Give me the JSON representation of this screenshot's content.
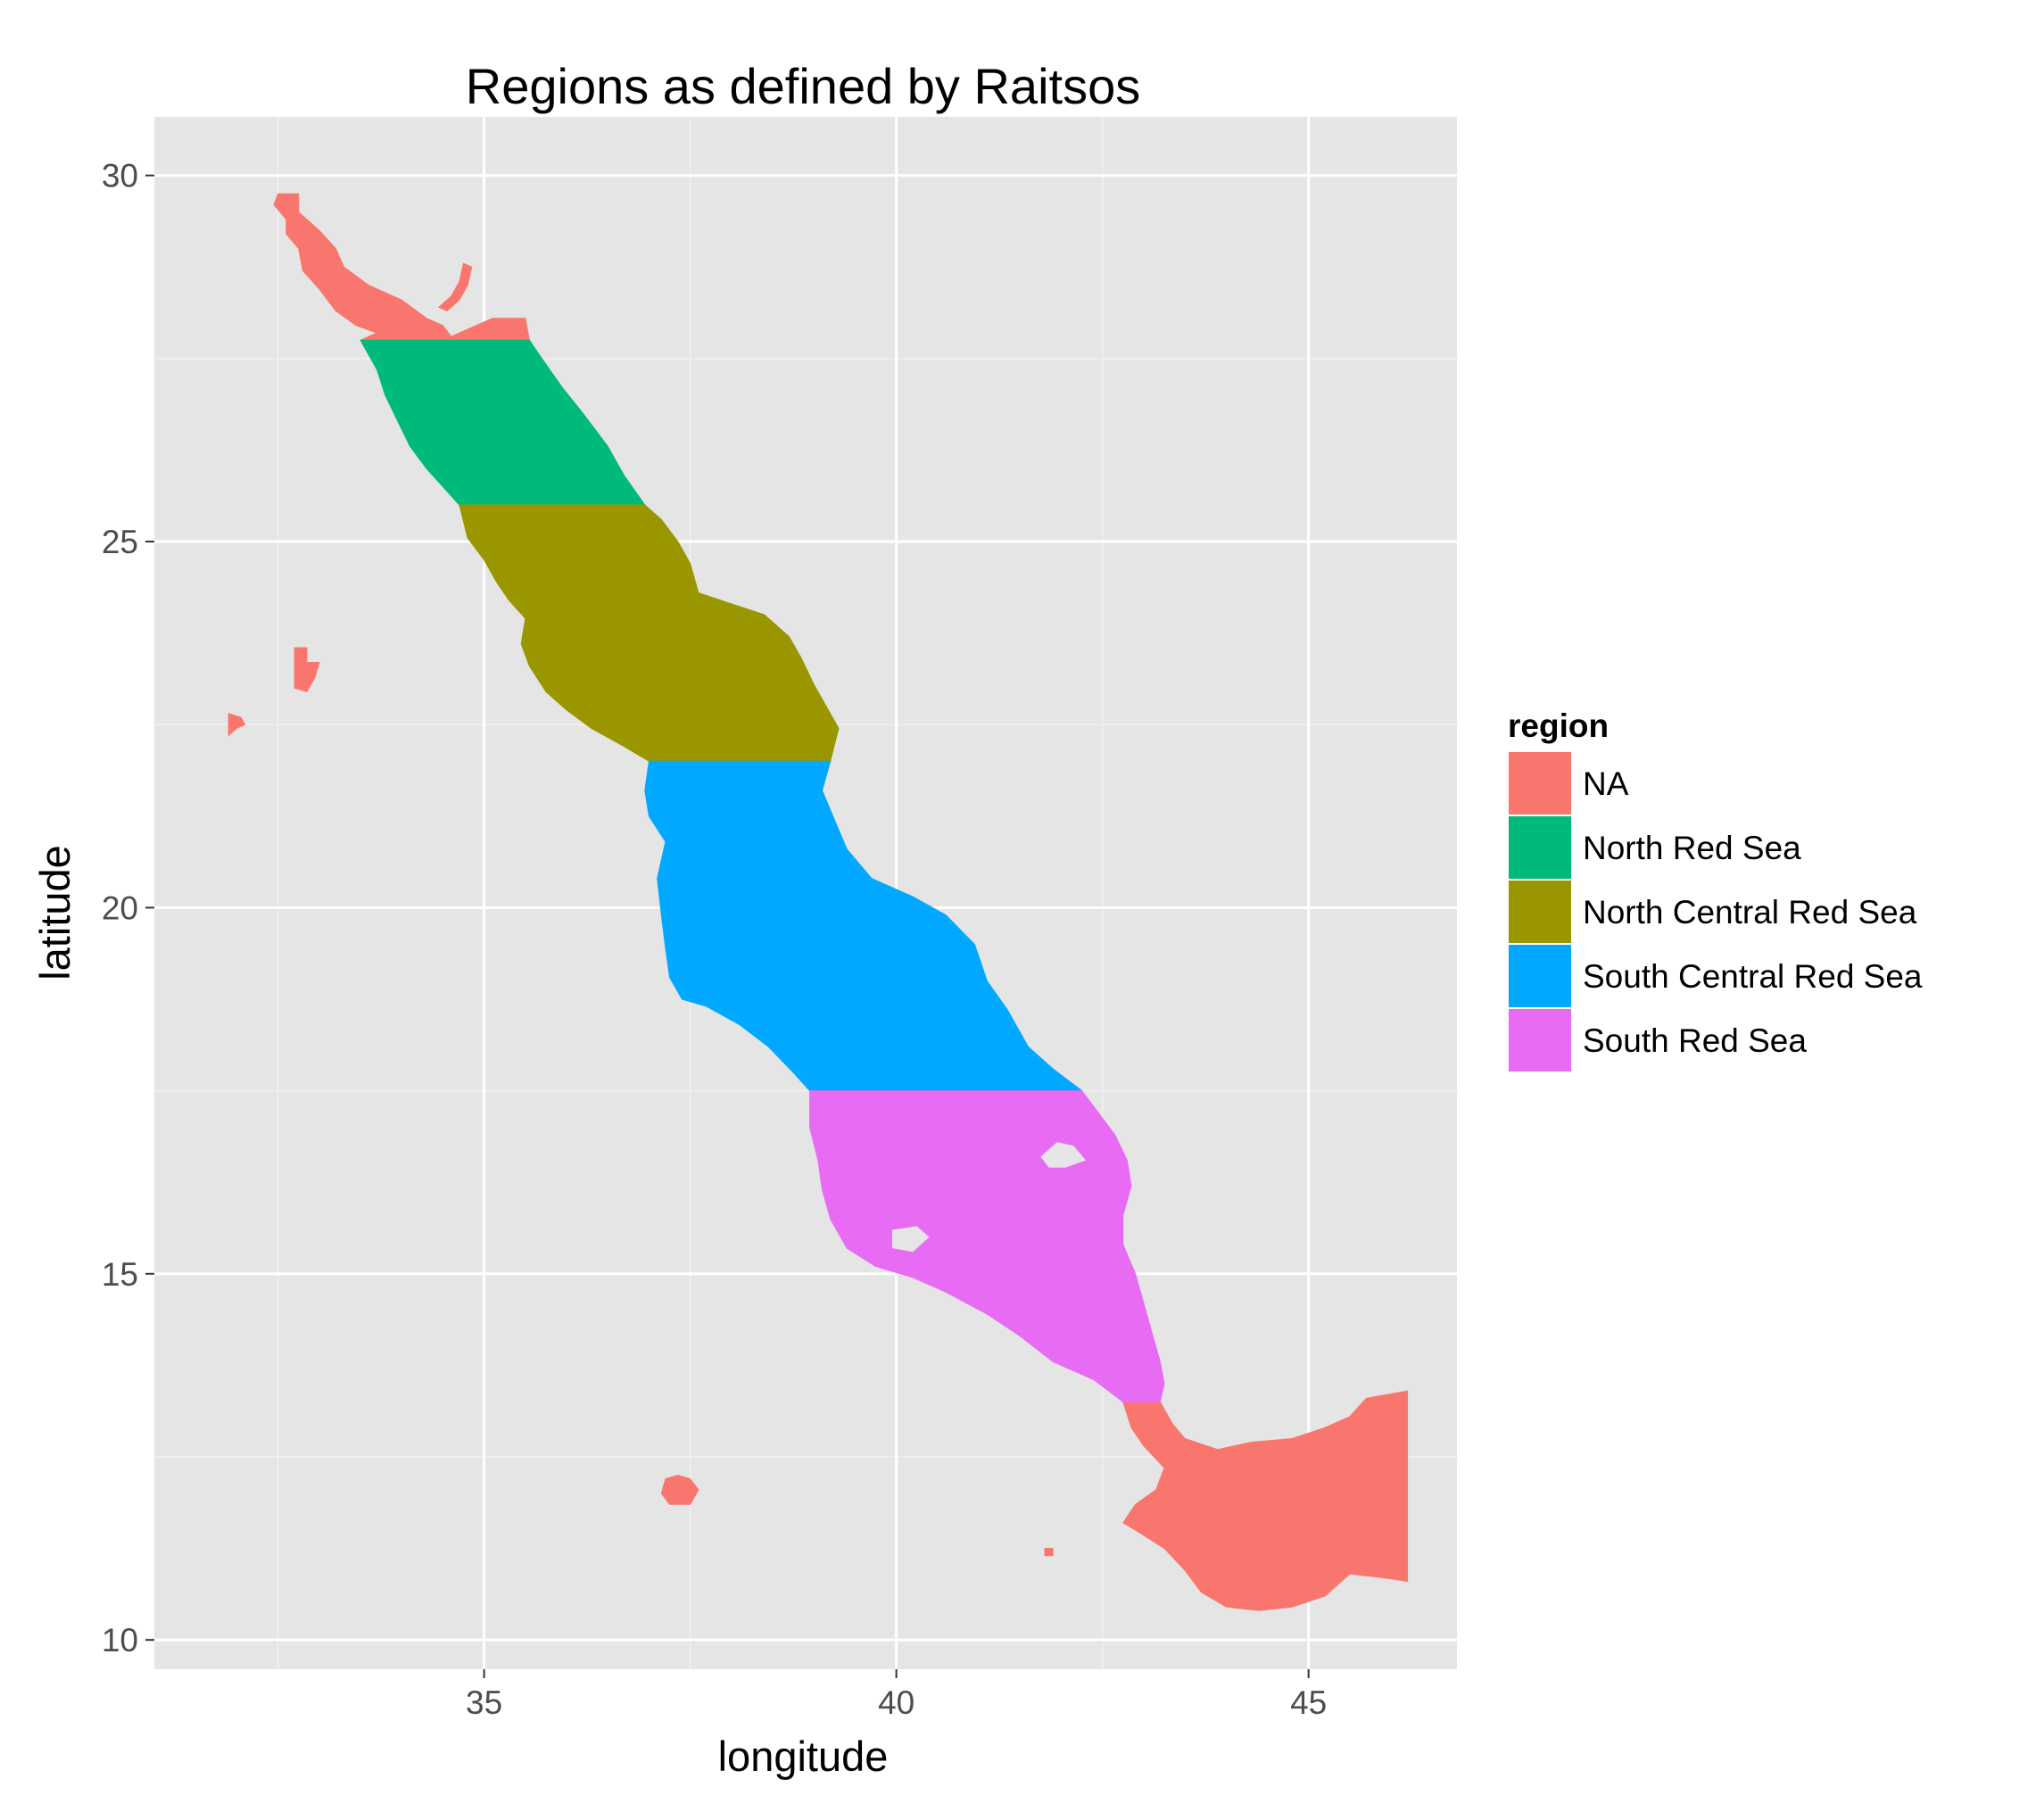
{
  "chart_data": {
    "type": "map",
    "title": "Regions as defined by Raitsos",
    "xlabel": "longitude",
    "ylabel": "latitude",
    "xlim": [
      31.0,
      46.8
    ],
    "ylim": [
      9.6,
      30.8
    ],
    "x_ticks": [
      35,
      40,
      45
    ],
    "y_ticks": [
      10,
      15,
      20,
      25,
      30
    ],
    "grid": true,
    "legend_position": "right",
    "legend_title": "region",
    "legend": [
      {
        "name": "NA",
        "color": "#F8766D"
      },
      {
        "name": "North Red Sea",
        "color": "#00BA7C"
      },
      {
        "name": "North Central Red Sea",
        "color": "#9A9600"
      },
      {
        "name": "South Central Red Sea",
        "color": "#00A9FF"
      },
      {
        "name": "South Red Sea",
        "color": "#E76BF3"
      }
    ],
    "region_bands": [
      {
        "name": "North Red Sea",
        "lat_from": 25.5,
        "lat_to": 27.75
      },
      {
        "name": "North Central Red Sea",
        "lat_from": 22.0,
        "lat_to": 25.5
      },
      {
        "name": "South Central Red Sea",
        "lat_from": 17.5,
        "lat_to": 22.0
      },
      {
        "name": "South Red Sea",
        "lat_from": 13.25,
        "lat_to": 17.5
      }
    ],
    "shapes": [
      {
        "region": "NA",
        "points": [
          [
            32.5,
            29.75
          ],
          [
            32.75,
            29.75
          ],
          [
            32.75,
            29.5
          ],
          [
            33.0,
            29.25
          ],
          [
            33.2,
            29.0
          ],
          [
            33.3,
            28.75
          ],
          [
            33.6,
            28.5
          ],
          [
            34.0,
            28.3
          ],
          [
            34.3,
            28.05
          ],
          [
            34.5,
            27.95
          ],
          [
            34.6,
            27.8
          ],
          [
            34.9,
            27.95
          ],
          [
            35.1,
            28.05
          ],
          [
            35.5,
            28.05
          ],
          [
            35.55,
            27.75
          ],
          [
            33.5,
            27.75
          ],
          [
            33.7,
            27.85
          ],
          [
            33.45,
            27.95
          ],
          [
            33.2,
            28.15
          ],
          [
            33.0,
            28.45
          ],
          [
            32.8,
            28.7
          ],
          [
            32.75,
            29.0
          ],
          [
            32.6,
            29.2
          ],
          [
            32.6,
            29.4
          ],
          [
            32.45,
            29.6
          ]
        ]
      },
      {
        "region": "NA",
        "points": [
          [
            34.45,
            28.2
          ],
          [
            34.6,
            28.35
          ],
          [
            34.7,
            28.55
          ],
          [
            34.75,
            28.8
          ],
          [
            34.85,
            28.75
          ],
          [
            34.8,
            28.5
          ],
          [
            34.7,
            28.3
          ],
          [
            34.55,
            28.15
          ]
        ]
      },
      {
        "region": "NA",
        "points": [
          [
            32.7,
            23.55
          ],
          [
            32.85,
            23.55
          ],
          [
            32.85,
            23.35
          ],
          [
            33.0,
            23.35
          ],
          [
            32.95,
            23.15
          ],
          [
            32.85,
            22.95
          ],
          [
            32.7,
            23.0
          ]
        ]
      },
      {
        "region": "NA",
        "points": [
          [
            31.9,
            22.65
          ],
          [
            32.05,
            22.6
          ],
          [
            32.1,
            22.5
          ],
          [
            32.0,
            22.45
          ],
          [
            31.9,
            22.35
          ]
        ]
      },
      {
        "region": "NA",
        "points": [
          [
            37.2,
            12.2
          ],
          [
            37.35,
            12.25
          ],
          [
            37.5,
            12.2
          ],
          [
            37.6,
            12.05
          ],
          [
            37.5,
            11.85
          ],
          [
            37.25,
            11.85
          ],
          [
            37.15,
            12.0
          ]
        ]
      },
      {
        "region": "NA",
        "points": [
          [
            41.8,
            11.25
          ],
          [
            41.9,
            11.25
          ],
          [
            41.9,
            11.15
          ],
          [
            41.8,
            11.15
          ]
        ]
      },
      {
        "region": "NA",
        "points": [
          [
            42.75,
            13.25
          ],
          [
            43.2,
            13.25
          ],
          [
            43.35,
            12.95
          ],
          [
            43.5,
            12.75
          ],
          [
            43.9,
            12.6
          ],
          [
            44.3,
            12.7
          ],
          [
            44.8,
            12.75
          ],
          [
            45.2,
            12.9
          ],
          [
            45.5,
            13.05
          ],
          [
            45.7,
            13.3
          ],
          [
            46.2,
            13.4
          ],
          [
            46.2,
            10.8
          ],
          [
            45.9,
            10.85
          ],
          [
            45.5,
            10.9
          ],
          [
            45.2,
            10.6
          ],
          [
            44.8,
            10.45
          ],
          [
            44.4,
            10.4
          ],
          [
            44.0,
            10.45
          ],
          [
            43.7,
            10.65
          ],
          [
            43.5,
            10.95
          ],
          [
            43.25,
            11.25
          ],
          [
            42.9,
            11.5
          ],
          [
            42.75,
            11.6
          ],
          [
            42.9,
            11.85
          ],
          [
            43.15,
            12.05
          ],
          [
            43.25,
            12.35
          ],
          [
            43.0,
            12.65
          ],
          [
            42.85,
            12.9
          ]
        ]
      },
      {
        "region": "North Red Sea",
        "points": [
          [
            33.5,
            27.75
          ],
          [
            35.55,
            27.75
          ],
          [
            35.7,
            27.5
          ],
          [
            35.95,
            27.1
          ],
          [
            36.2,
            26.75
          ],
          [
            36.5,
            26.3
          ],
          [
            36.7,
            25.9
          ],
          [
            36.95,
            25.5
          ],
          [
            34.7,
            25.5
          ],
          [
            34.5,
            25.75
          ],
          [
            34.3,
            26.0
          ],
          [
            34.1,
            26.3
          ],
          [
            33.95,
            26.65
          ],
          [
            33.8,
            27.0
          ],
          [
            33.7,
            27.35
          ]
        ]
      },
      {
        "region": "North Central Red Sea",
        "points": [
          [
            34.7,
            25.5
          ],
          [
            36.95,
            25.5
          ],
          [
            37.15,
            25.3
          ],
          [
            37.35,
            25.0
          ],
          [
            37.5,
            24.7
          ],
          [
            37.6,
            24.3
          ],
          [
            38.0,
            24.15
          ],
          [
            38.4,
            24.0
          ],
          [
            38.7,
            23.7
          ],
          [
            38.85,
            23.4
          ],
          [
            39.0,
            23.05
          ],
          [
            39.15,
            22.75
          ],
          [
            39.3,
            22.45
          ],
          [
            39.2,
            22.0
          ],
          [
            37.0,
            22.0
          ],
          [
            36.7,
            22.2
          ],
          [
            36.3,
            22.45
          ],
          [
            36.0,
            22.7
          ],
          [
            35.75,
            22.95
          ],
          [
            35.55,
            23.3
          ],
          [
            35.45,
            23.6
          ],
          [
            35.5,
            23.95
          ],
          [
            35.3,
            24.2
          ],
          [
            35.15,
            24.45
          ],
          [
            35.0,
            24.75
          ],
          [
            34.8,
            25.05
          ]
        ]
      },
      {
        "region": "South Central Red Sea",
        "points": [
          [
            37.0,
            22.0
          ],
          [
            39.2,
            22.0
          ],
          [
            39.1,
            21.6
          ],
          [
            39.25,
            21.2
          ],
          [
            39.4,
            20.8
          ],
          [
            39.7,
            20.4
          ],
          [
            40.2,
            20.15
          ],
          [
            40.6,
            19.9
          ],
          [
            40.95,
            19.5
          ],
          [
            41.1,
            19.0
          ],
          [
            41.35,
            18.6
          ],
          [
            41.6,
            18.1
          ],
          [
            41.9,
            17.8
          ],
          [
            42.25,
            17.5
          ],
          [
            38.95,
            17.5
          ],
          [
            38.75,
            17.75
          ],
          [
            38.45,
            18.1
          ],
          [
            38.1,
            18.4
          ],
          [
            37.7,
            18.65
          ],
          [
            37.4,
            18.75
          ],
          [
            37.25,
            19.05
          ],
          [
            37.2,
            19.45
          ],
          [
            37.15,
            19.9
          ],
          [
            37.1,
            20.4
          ],
          [
            37.2,
            20.9
          ],
          [
            37.0,
            21.25
          ],
          [
            36.95,
            21.6
          ]
        ]
      },
      {
        "region": "South Red Sea",
        "points": [
          [
            38.95,
            17.5
          ],
          [
            42.25,
            17.5
          ],
          [
            42.45,
            17.2
          ],
          [
            42.65,
            16.9
          ],
          [
            42.8,
            16.55
          ],
          [
            42.85,
            16.2
          ],
          [
            42.75,
            15.8
          ],
          [
            42.75,
            15.4
          ],
          [
            42.9,
            15.0
          ],
          [
            43.0,
            14.6
          ],
          [
            43.1,
            14.2
          ],
          [
            43.2,
            13.8
          ],
          [
            43.25,
            13.5
          ],
          [
            43.2,
            13.25
          ],
          [
            42.75,
            13.25
          ],
          [
            42.4,
            13.55
          ],
          [
            41.9,
            13.8
          ],
          [
            41.5,
            14.15
          ],
          [
            41.1,
            14.45
          ],
          [
            40.6,
            14.75
          ],
          [
            40.2,
            14.95
          ],
          [
            39.75,
            15.1
          ],
          [
            39.4,
            15.35
          ],
          [
            39.2,
            15.75
          ],
          [
            39.1,
            16.15
          ],
          [
            39.05,
            16.55
          ],
          [
            38.95,
            17.0
          ]
        ]
      }
    ],
    "holes": [
      {
        "points": [
          [
            41.75,
            16.6
          ],
          [
            41.95,
            16.8
          ],
          [
            42.15,
            16.75
          ],
          [
            42.3,
            16.55
          ],
          [
            42.05,
            16.45
          ],
          [
            41.85,
            16.45
          ]
        ]
      },
      {
        "points": [
          [
            39.95,
            15.6
          ],
          [
            40.25,
            15.65
          ],
          [
            40.4,
            15.5
          ],
          [
            40.2,
            15.3
          ],
          [
            39.95,
            15.35
          ]
        ]
      }
    ]
  }
}
